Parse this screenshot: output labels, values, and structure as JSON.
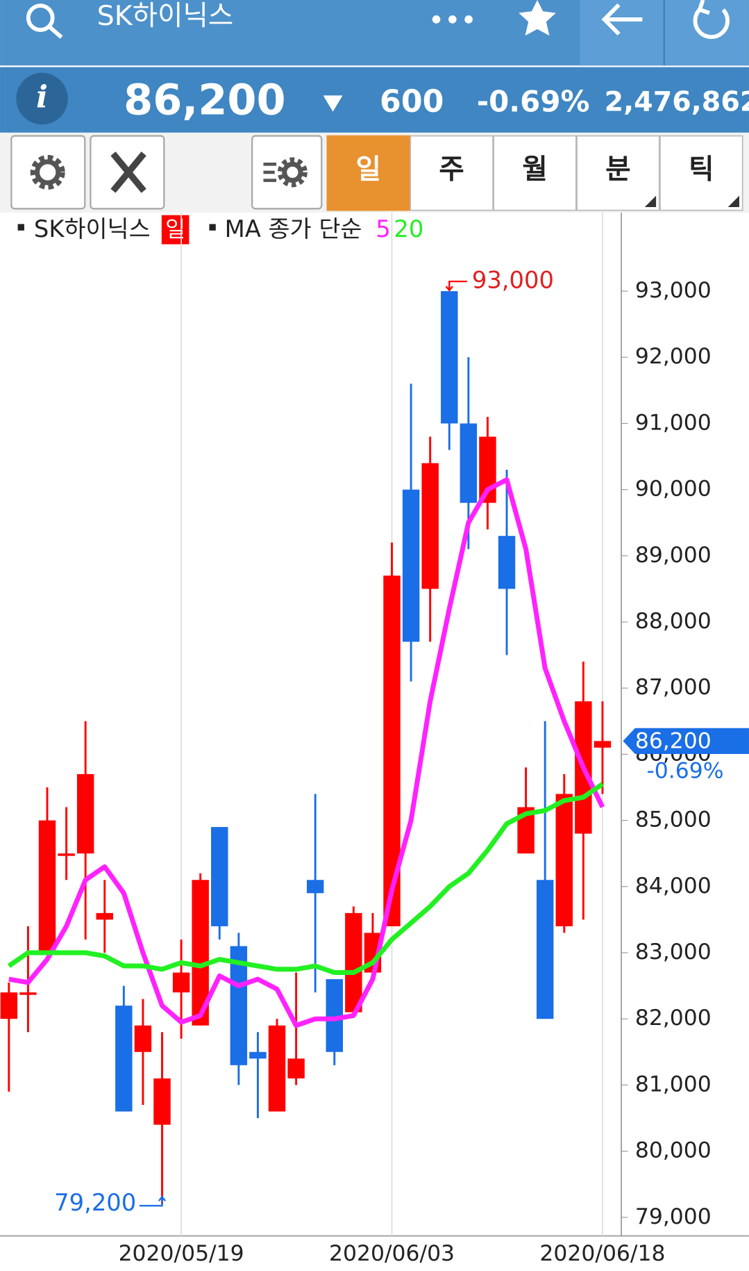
{
  "header": {
    "title": "SK하이닉스"
  },
  "quote": {
    "price": "86,200",
    "change": "600",
    "change_pct": "-0.69%",
    "volume": "2,476,862"
  },
  "tabs": [
    "일",
    "주",
    "월",
    "분",
    "틱"
  ],
  "chart_data": {
    "type": "candlestick",
    "legend": {
      "name": "SK하이닉스",
      "period": "일",
      "ma_label": "MA 종가 단순"
    },
    "categories": [
      null,
      null,
      null,
      null,
      null,
      null,
      null,
      null,
      null,
      "2020/05/19",
      null,
      null,
      null,
      null,
      null,
      null,
      null,
      null,
      null,
      null,
      "2020/06/03",
      null,
      null,
      null,
      null,
      null,
      null,
      null,
      null,
      null,
      null,
      "2020/06/18"
    ],
    "open": [
      82000,
      82400,
      83000,
      84500,
      84500,
      83500,
      82200,
      81500,
      80400,
      82400,
      81900,
      84900,
      83100,
      81500,
      80600,
      81100,
      84100,
      82600,
      82100,
      82700,
      83400,
      90000,
      88500,
      93000,
      91000,
      89800,
      89300,
      84500,
      84100,
      83400,
      84800,
      86100
    ],
    "high": [
      82550,
      83400,
      85500,
      85200,
      86500,
      84100,
      82500,
      82300,
      81800,
      83200,
      84200,
      84900,
      83300,
      81800,
      82000,
      82700,
      85400,
      82600,
      83700,
      83600,
      89200,
      91600,
      90800,
      93000,
      92000,
      91100,
      90300,
      85800,
      86500,
      85700,
      87400,
      86800
    ],
    "low": [
      80900,
      81800,
      83000,
      84100,
      83200,
      83000,
      80600,
      80700,
      79200,
      81700,
      81900,
      83200,
      81000,
      80500,
      80600,
      81000,
      82400,
      81300,
      82100,
      82700,
      83400,
      87100,
      87700,
      90600,
      89100,
      89400,
      87500,
      84500,
      82000,
      83300,
      83500,
      85400
    ],
    "close": [
      82400,
      82400,
      85000,
      84500,
      85700,
      83600,
      80600,
      81900,
      81100,
      82700,
      84100,
      83400,
      81300,
      81400,
      81900,
      81400,
      83900,
      81500,
      83600,
      83300,
      88700,
      87700,
      90400,
      91000,
      89800,
      90800,
      88500,
      85200,
      82000,
      85400,
      86800,
      86200
    ],
    "up_color": "#ff0000",
    "down_color": "#1a6ee6",
    "series": [
      {
        "name": "5",
        "color": "#ff22ff",
        "values": [
          82600,
          82550,
          82900,
          83400,
          84100,
          84300,
          83900,
          83000,
          82200,
          81950,
          82050,
          82650,
          82500,
          82600,
          82450,
          81900,
          82000,
          82000,
          82050,
          82600,
          83950,
          85000,
          86800,
          88200,
          89500,
          90000,
          90150,
          89100,
          87300,
          86500,
          85800,
          85200
        ]
      },
      {
        "name": "20",
        "color": "#22f022",
        "values": [
          82800,
          83000,
          83000,
          83000,
          83000,
          82950,
          82800,
          82800,
          82750,
          82850,
          82800,
          82900,
          82850,
          82800,
          82750,
          82750,
          82800,
          82700,
          82700,
          82850,
          83200,
          83450,
          83700,
          84000,
          84200,
          84550,
          84950,
          85100,
          85150,
          85300,
          85350,
          85550
        ]
      }
    ],
    "ylim": [
      78720,
      94100
    ],
    "yticks": [
      {
        "value": 79000,
        "label": "79,000"
      },
      {
        "value": 80000,
        "label": "80,000"
      },
      {
        "value": 81000,
        "label": "81,000"
      },
      {
        "value": 82000,
        "label": "82,000"
      },
      {
        "value": 83000,
        "label": "83,000"
      },
      {
        "value": 84000,
        "label": "84,000"
      },
      {
        "value": 85000,
        "label": "85,000"
      },
      {
        "value": 86000,
        "label": "86,000"
      },
      {
        "value": 87000,
        "label": "87,000"
      },
      {
        "value": 88000,
        "label": "88,000"
      },
      {
        "value": 89000,
        "label": "89,000"
      },
      {
        "value": 90000,
        "label": "90,000"
      },
      {
        "value": 91000,
        "label": "91,000"
      },
      {
        "value": 92000,
        "label": "92,000"
      },
      {
        "value": 93000,
        "label": "93,000"
      }
    ],
    "annotations": {
      "high": {
        "value": 93000,
        "label": "93,000"
      },
      "low": {
        "value": 79200,
        "label": "79,200"
      },
      "last": {
        "value": 86200,
        "label": "86,200",
        "change": "-0.69%"
      }
    }
  }
}
